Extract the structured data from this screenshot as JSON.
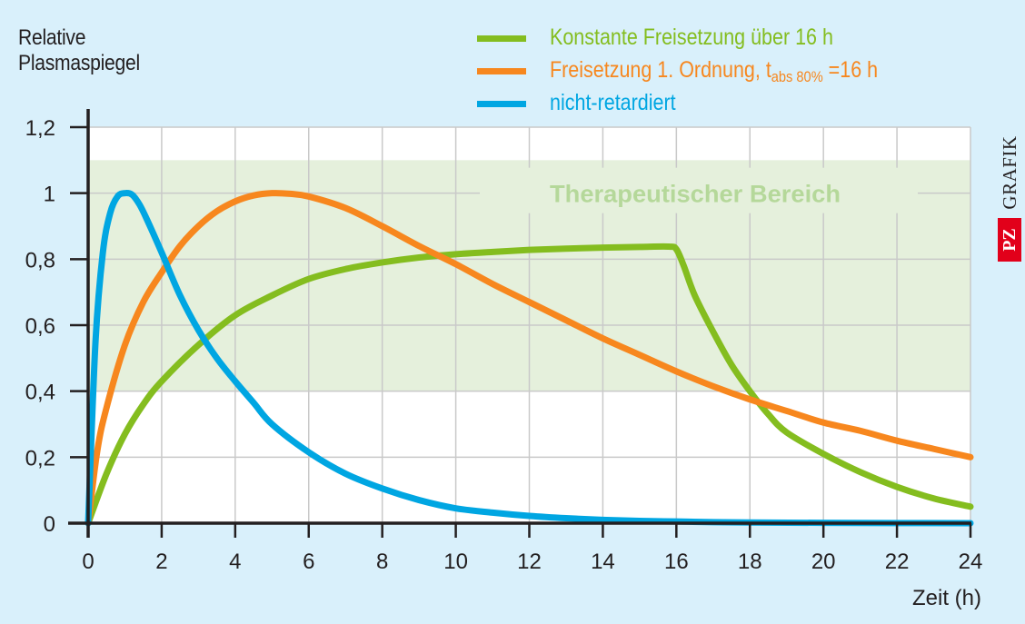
{
  "chart_data": {
    "type": "line",
    "title": "",
    "ylabel": "Relative Plasmaspiegel",
    "xlabel": "Zeit (h)",
    "xlim": [
      0,
      24
    ],
    "ylim": [
      0,
      1.2
    ],
    "x_ticks": [
      0,
      2,
      4,
      6,
      8,
      10,
      12,
      14,
      16,
      18,
      20,
      22,
      24
    ],
    "x_tick_labels": [
      "0",
      "2",
      "4",
      "6",
      "8",
      "10",
      "12",
      "14",
      "16",
      "18",
      "20",
      "22",
      "24"
    ],
    "y_ticks": [
      0,
      0.2,
      0.4,
      0.6,
      0.8,
      1,
      1.2
    ],
    "y_tick_labels": [
      "0",
      "0,2",
      "0,4",
      "0,6",
      "0,8",
      "1",
      "1,2"
    ],
    "grid": true,
    "legend_position": "top-right",
    "shaded_region": {
      "label": "Therapeutischer Bereich",
      "y_range": [
        0.4,
        1.1
      ],
      "color": "#e5f0dc",
      "label_color": "#b5d89a"
    },
    "series": [
      {
        "name": "Konstante Freisetzung über 16 h",
        "color": "#84bd1f",
        "x": [
          0,
          0.5,
          1,
          1.5,
          2,
          3,
          4,
          5,
          6,
          7,
          8,
          9,
          10,
          11,
          12,
          13,
          14,
          15,
          15.8,
          16,
          16.2,
          16.5,
          17,
          17.5,
          18,
          18.5,
          19,
          20,
          21,
          22,
          23,
          24
        ],
        "y": [
          0,
          0.15,
          0.27,
          0.36,
          0.43,
          0.54,
          0.63,
          0.69,
          0.74,
          0.77,
          0.79,
          0.805,
          0.815,
          0.822,
          0.828,
          0.832,
          0.835,
          0.837,
          0.838,
          0.83,
          0.78,
          0.69,
          0.58,
          0.48,
          0.4,
          0.33,
          0.275,
          0.21,
          0.155,
          0.11,
          0.075,
          0.05
        ]
      },
      {
        "name": "Freisetzung 1. Ordnung, tabs80% = 16 h",
        "color": "#f7871e",
        "x": [
          0,
          0.25,
          0.5,
          1,
          1.5,
          2,
          2.5,
          3,
          3.5,
          4,
          4.5,
          5,
          5.5,
          6,
          7,
          8,
          9,
          10,
          11,
          12,
          13,
          14,
          15,
          16,
          17,
          18,
          19,
          20,
          21,
          22,
          23,
          24
        ],
        "y": [
          0,
          0.22,
          0.35,
          0.54,
          0.67,
          0.76,
          0.84,
          0.9,
          0.945,
          0.975,
          0.993,
          1.0,
          0.998,
          0.99,
          0.955,
          0.9,
          0.84,
          0.785,
          0.725,
          0.67,
          0.615,
          0.56,
          0.51,
          0.46,
          0.415,
          0.375,
          0.34,
          0.305,
          0.28,
          0.25,
          0.225,
          0.2
        ]
      },
      {
        "name": "nicht-retardiert",
        "color": "#00a6e2",
        "x": [
          0,
          0.2,
          0.4,
          0.6,
          0.8,
          1,
          1.2,
          1.4,
          1.6,
          2,
          2.5,
          3,
          3.5,
          4,
          4.5,
          5,
          6,
          7,
          8,
          9,
          10,
          11,
          12,
          13,
          14,
          15,
          16,
          17,
          18,
          20,
          24
        ],
        "y": [
          0,
          0.55,
          0.82,
          0.94,
          0.99,
          1.0,
          0.995,
          0.965,
          0.92,
          0.82,
          0.69,
          0.585,
          0.5,
          0.43,
          0.365,
          0.3,
          0.215,
          0.15,
          0.105,
          0.07,
          0.045,
          0.032,
          0.022,
          0.015,
          0.01,
          0.007,
          0.005,
          0.003,
          0.002,
          0.001,
          0
        ]
      }
    ]
  },
  "legend": {
    "items": [
      {
        "text": "Konstante Freisetzung über 16 h",
        "color": "#84bd1f"
      },
      {
        "text_main": "Freisetzung 1. Ordnung,  t",
        "sub": "abs 80%",
        "text_end": " =16 h",
        "color": "#f7871e"
      },
      {
        "text": "nicht-retardiert",
        "color": "#00a6e2"
      }
    ]
  },
  "brand": {
    "logo": "PZ",
    "label": "GRAFIK",
    "logo_color": "#e2001a"
  },
  "colors": {
    "background": "#d9f0fb",
    "plot_background": "#ffffff",
    "axis": "#231f20",
    "grid": "#c9c9c9"
  }
}
